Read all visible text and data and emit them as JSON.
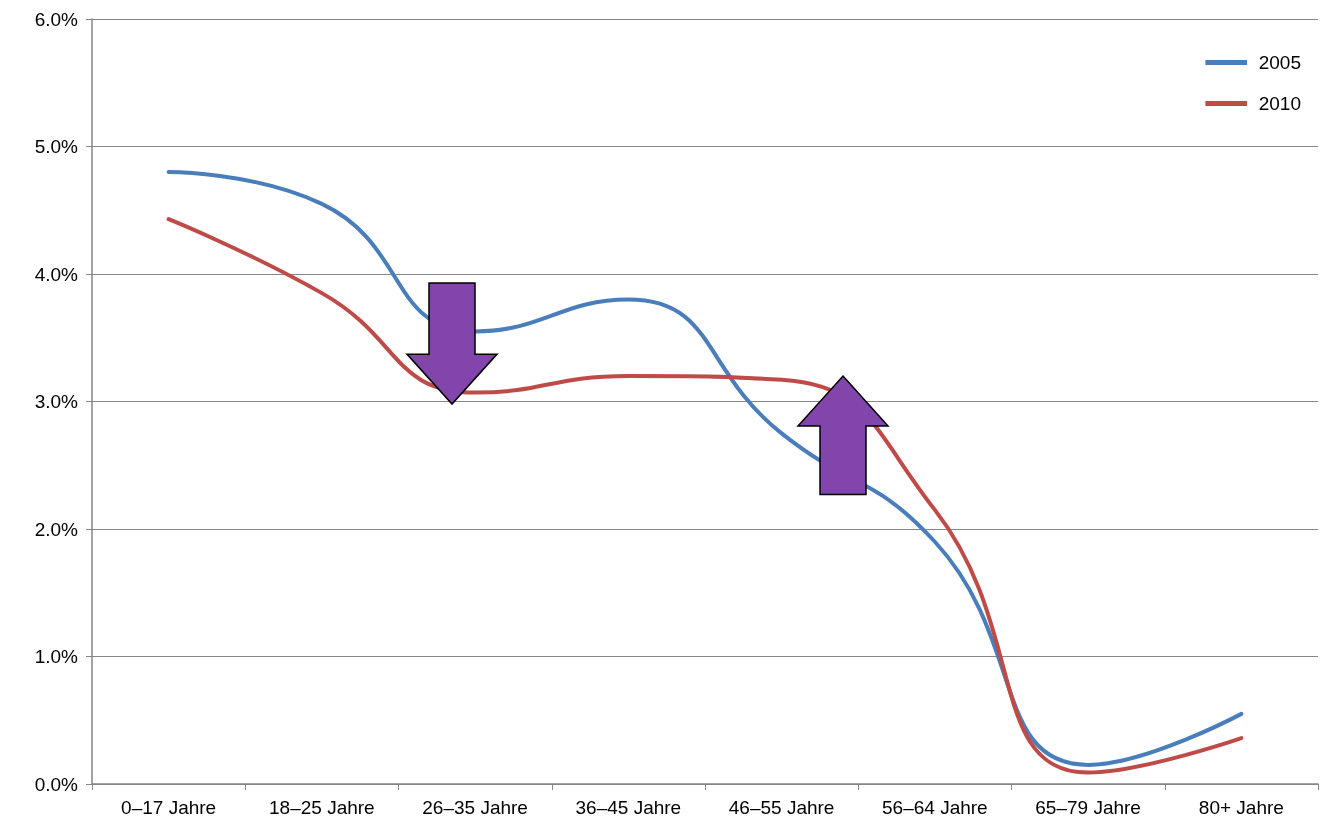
{
  "chart_data": {
    "type": "line",
    "categories": [
      "0–17 Jahre",
      "18–25 Jahre",
      "26–35 Jahre",
      "36–45 Jahre",
      "46–55 Jahre",
      "56–64 Jahre",
      "65–79 Jahre",
      "80+ Jahre"
    ],
    "series": [
      {
        "name": "2005",
        "color": "#4a7ebb",
        "values": [
          4.8,
          4.55,
          3.55,
          3.8,
          2.75,
          1.9,
          0.15,
          0.55
        ]
      },
      {
        "name": "2010",
        "color": "#be4b48",
        "values": [
          4.43,
          3.85,
          3.07,
          3.2,
          3.17,
          2.15,
          0.09,
          0.36
        ]
      }
    ],
    "ylim": [
      0,
      6
    ],
    "yticks": [
      {
        "value": 0,
        "label": "0.0%"
      },
      {
        "value": 1,
        "label": "1.0%"
      },
      {
        "value": 2,
        "label": "2.0%"
      },
      {
        "value": 3,
        "label": "3.0%"
      },
      {
        "value": 4,
        "label": "4.0%"
      },
      {
        "value": 5,
        "label": "5.0%"
      },
      {
        "value": 6,
        "label": "6.0%"
      }
    ],
    "grid": "y",
    "legend": "top right",
    "marker": "none",
    "line_style": "solid"
  }
}
